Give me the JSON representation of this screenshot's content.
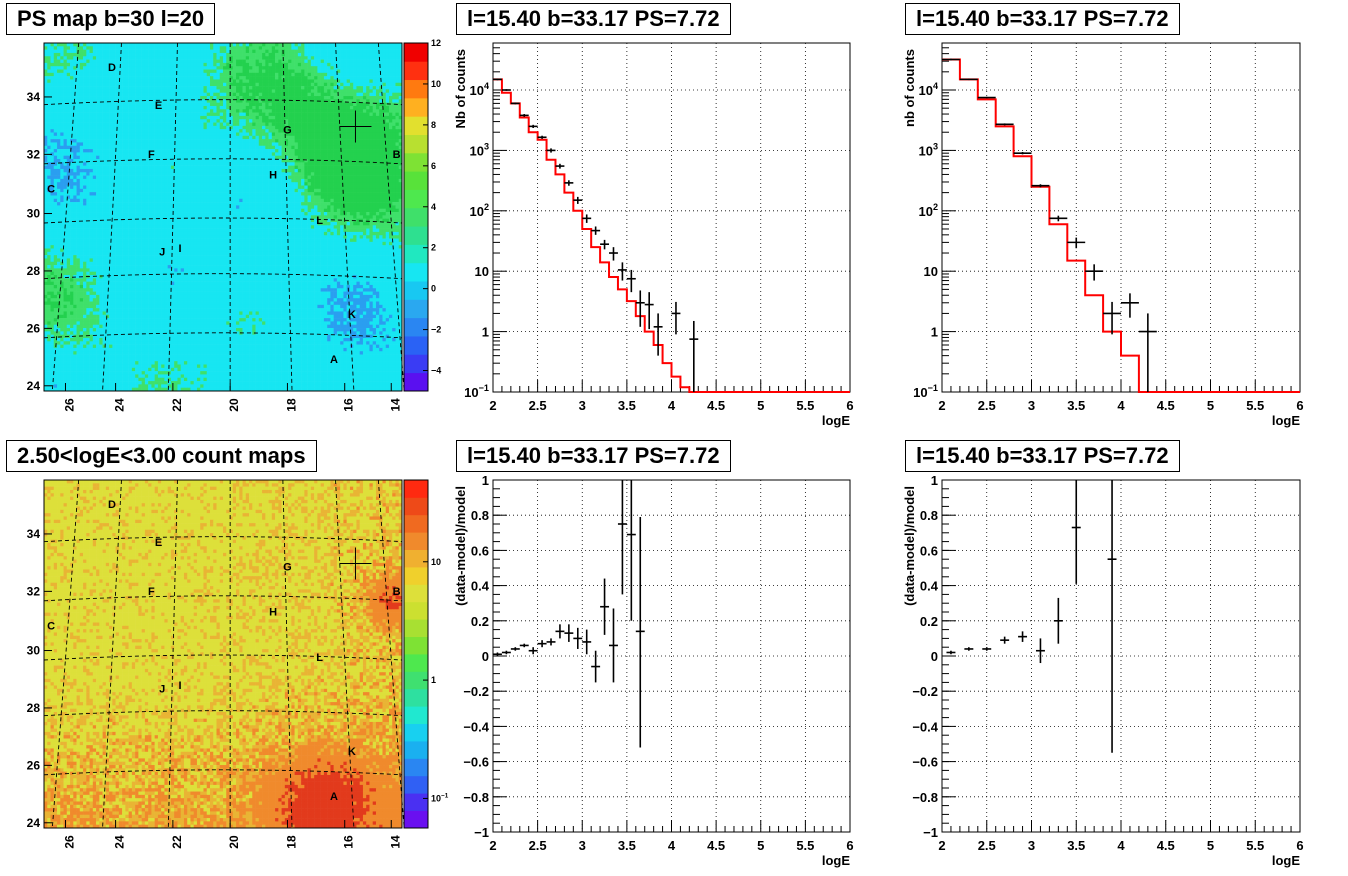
{
  "titles": {
    "map_top": "PS map b=30 l=20",
    "map_bottom": "2.50<logE<3.00 count maps",
    "spec_left": "l=15.40 b=33.17 PS=7.72",
    "spec_right": "l=15.40 b=33.17 PS=7.72",
    "resid_left": "l=15.40 b=33.17 PS=7.72",
    "resid_right": "l=15.40 b=33.17 PS=7.72"
  },
  "chart_data": [
    {
      "id": "map_top",
      "type": "heatmap",
      "title": "PS map b=30 l=20",
      "x_ticks": [
        "26",
        "24",
        "22",
        "20",
        "18",
        "16",
        "14"
      ],
      "y_ticks": [
        "24",
        "26",
        "28",
        "30",
        "32",
        "34"
      ],
      "z_ticks": [
        "-4",
        "-2",
        "0",
        "2",
        "4",
        "6",
        "8",
        "10",
        "12"
      ],
      "zlim": [
        -5,
        12
      ],
      "colors": {
        "background": "#17e6f2",
        "patch": "#3fe06a",
        "patch_dark": "#23d14e",
        "low": "#2a9ef0"
      },
      "sources": [
        "A",
        "B",
        "C",
        "D",
        "E",
        "F",
        "G",
        "H",
        "I",
        "J",
        "K",
        "L"
      ]
    },
    {
      "id": "map_bottom",
      "type": "heatmap",
      "title": "2.50<logE<3.00 count maps",
      "x_ticks": [
        "26",
        "24",
        "22",
        "20",
        "18",
        "16",
        "14"
      ],
      "y_ticks": [
        "24",
        "26",
        "28",
        "30",
        "32",
        "34"
      ],
      "z_ticks": [
        "10^-1",
        "1",
        "10"
      ],
      "z_scale": "log",
      "colors": {
        "background": "#dde03a",
        "high": "#f08a2c",
        "peak": "#e23a1c"
      },
      "sources": [
        "A",
        "B",
        "C",
        "D",
        "E",
        "F",
        "G",
        "H",
        "I",
        "J",
        "K",
        "L"
      ]
    },
    {
      "id": "spec_left",
      "type": "line",
      "title": "l=15.40 b=33.17 PS=7.72",
      "xlabel": "logE",
      "ylabel": "Nb of counts",
      "xlim": [
        2,
        6
      ],
      "ylim": [
        0.1,
        60000
      ],
      "y_scale": "log",
      "grid": true,
      "x_ticks": [
        "2",
        "2.5",
        "3",
        "3.5",
        "4",
        "4.5",
        "5",
        "5.5",
        "6"
      ],
      "y_ticks": [
        "10^-1",
        "1",
        "10",
        "10^2",
        "10^3",
        "10^4"
      ],
      "model": {
        "edges": [
          2.0,
          2.1,
          2.2,
          2.3,
          2.4,
          2.5,
          2.6,
          2.7,
          2.8,
          2.9,
          3.0,
          3.1,
          3.2,
          3.3,
          3.4,
          3.5,
          3.6,
          3.7,
          3.8,
          3.9,
          4.0,
          4.1,
          4.2,
          4.3,
          4.4,
          6.0
        ],
        "values": [
          15000,
          9000,
          6000,
          3500,
          2000,
          1500,
          700,
          400,
          200,
          100,
          50,
          25,
          14,
          8,
          5,
          3.2,
          1.8,
          1.0,
          0.6,
          0.3,
          0.18,
          0.12,
          0.08,
          0.05,
          0.05
        ],
        "color": "#ff0000"
      },
      "data": {
        "x": [
          2.05,
          2.15,
          2.25,
          2.35,
          2.45,
          2.55,
          2.65,
          2.75,
          2.85,
          2.95,
          3.05,
          3.15,
          3.25,
          3.35,
          3.45,
          3.55,
          3.65,
          3.75,
          3.85,
          4.05,
          4.25
        ],
        "y": [
          15000,
          10000,
          6000,
          3800,
          2500,
          1650,
          1000,
          550,
          290,
          150,
          75,
          47,
          28,
          20,
          10.5,
          7.5,
          3.0,
          2.8,
          1.2,
          2.0,
          0.75
        ],
        "ylo": [
          14500,
          9700,
          5800,
          3600,
          2350,
          1550,
          920,
          500,
          260,
          130,
          63,
          40,
          23,
          15,
          7,
          4.5,
          1.2,
          1.1,
          0.4,
          0.9,
          0.09
        ],
        "yhi": [
          15500,
          10300,
          6200,
          4000,
          2650,
          1750,
          1080,
          600,
          320,
          170,
          87,
          55,
          33,
          25,
          14,
          10.5,
          4.8,
          4.5,
          2.0,
          3.1,
          1.5
        ]
      }
    },
    {
      "id": "spec_right",
      "type": "line",
      "title": "l=15.40 b=33.17 PS=7.72",
      "xlabel": "logE",
      "ylabel": "nb of counts",
      "xlim": [
        2,
        6
      ],
      "ylim": [
        0.1,
        60000
      ],
      "y_scale": "log",
      "grid": true,
      "x_ticks": [
        "2",
        "2.5",
        "3",
        "3.5",
        "4",
        "4.5",
        "5",
        "5.5",
        "6"
      ],
      "y_ticks": [
        "10^-1",
        "1",
        "10",
        "10^2",
        "10^3",
        "10^4"
      ],
      "model": {
        "edges": [
          2.0,
          2.2,
          2.4,
          2.6,
          2.8,
          3.0,
          3.2,
          3.4,
          3.6,
          3.8,
          4.0,
          4.2,
          4.4,
          6.0
        ],
        "values": [
          32000,
          15000,
          7000,
          2500,
          800,
          250,
          60,
          15,
          4,
          1,
          0.4,
          0.07,
          0.05
        ],
        "color": "#ff0000"
      },
      "data": {
        "x": [
          2.1,
          2.3,
          2.5,
          2.7,
          2.9,
          3.1,
          3.3,
          3.5,
          3.7,
          3.9,
          4.1,
          4.3
        ],
        "y": [
          32000,
          15000,
          7500,
          2700,
          900,
          260,
          75,
          30,
          10,
          2.0,
          3.0,
          1.0
        ],
        "ylo": [
          31000,
          14600,
          7300,
          2600,
          860,
          245,
          67,
          24,
          7,
          0.9,
          1.7,
          0.09
        ],
        "yhi": [
          33000,
          15400,
          7700,
          2800,
          940,
          275,
          83,
          36,
          13,
          3.1,
          4.3,
          2.0
        ]
      }
    },
    {
      "id": "resid_left",
      "type": "scatter",
      "title": "l=15.40 b=33.17 PS=7.72",
      "xlabel": "logE",
      "ylabel": "(data-model)/model",
      "xlim": [
        2,
        6
      ],
      "ylim": [
        -1,
        1
      ],
      "grid": true,
      "x_ticks": [
        "2",
        "2.5",
        "3",
        "3.5",
        "4",
        "4.5",
        "5",
        "5.5",
        "6"
      ],
      "y_ticks": [
        "-1",
        "-0.8",
        "-0.6",
        "-0.4",
        "-0.2",
        "0",
        "0.2",
        "0.4",
        "0.6",
        "0.8",
        "1"
      ],
      "data": {
        "x": [
          2.05,
          2.15,
          2.25,
          2.35,
          2.45,
          2.55,
          2.65,
          2.75,
          2.85,
          2.95,
          3.05,
          3.15,
          3.25,
          3.35,
          3.45,
          3.55,
          3.65
        ],
        "y": [
          0.01,
          0.02,
          0.04,
          0.06,
          0.03,
          0.07,
          0.08,
          0.14,
          0.13,
          0.1,
          0.08,
          -0.06,
          0.28,
          0.06,
          0.75,
          0.69,
          0.14
        ],
        "ylo": [
          0.0,
          0.01,
          0.03,
          0.05,
          0.01,
          0.05,
          0.06,
          0.1,
          0.08,
          0.04,
          0.01,
          -0.15,
          0.12,
          -0.15,
          0.35,
          0.2,
          -0.52
        ],
        "yhi": [
          0.02,
          0.03,
          0.05,
          0.07,
          0.05,
          0.09,
          0.1,
          0.18,
          0.18,
          0.16,
          0.15,
          0.03,
          0.44,
          0.27,
          1.0,
          1.0,
          0.79
        ]
      }
    },
    {
      "id": "resid_right",
      "type": "scatter",
      "title": "l=15.40 b=33.17 PS=7.72",
      "xlabel": "logE",
      "ylabel": "(data-model)/model",
      "xlim": [
        2,
        6
      ],
      "ylim": [
        -1,
        1
      ],
      "grid": true,
      "x_ticks": [
        "2",
        "2.5",
        "3",
        "3.5",
        "4",
        "4.5",
        "5",
        "5.5",
        "6"
      ],
      "y_ticks": [
        "-1",
        "-0.8",
        "-0.6",
        "-0.4",
        "-0.2",
        "0",
        "0.2",
        "0.4",
        "0.6",
        "0.8",
        "1"
      ],
      "data": {
        "x": [
          2.1,
          2.3,
          2.5,
          2.7,
          2.9,
          3.1,
          3.3,
          3.5,
          3.9
        ],
        "y": [
          0.02,
          0.04,
          0.04,
          0.09,
          0.11,
          0.03,
          0.2,
          0.73,
          0.55
        ],
        "ylo": [
          0.01,
          0.03,
          0.03,
          0.07,
          0.08,
          -0.04,
          0.07,
          0.41,
          -0.55
        ],
        "yhi": [
          0.03,
          0.05,
          0.05,
          0.11,
          0.14,
          0.1,
          0.33,
          1.0,
          1.0
        ]
      }
    }
  ]
}
